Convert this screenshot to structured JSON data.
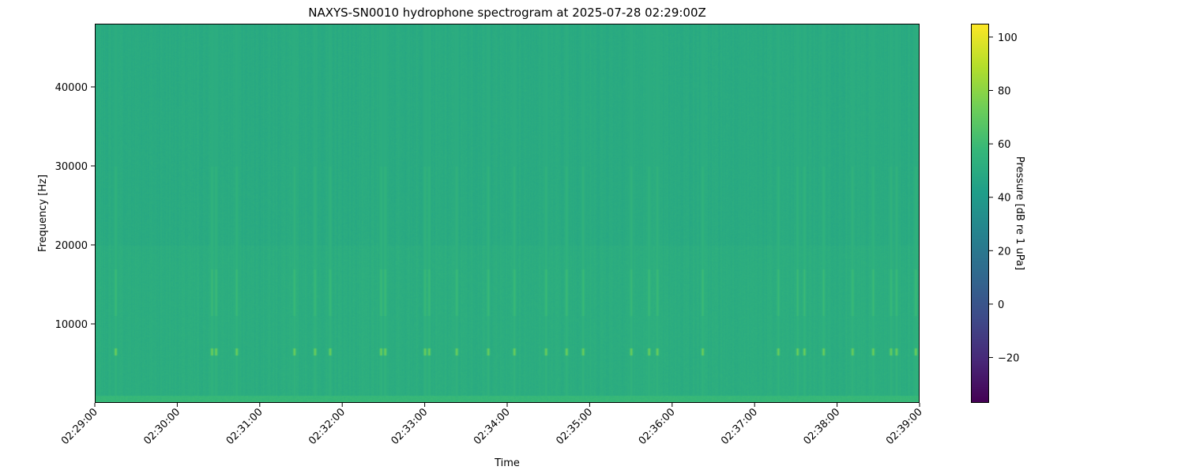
{
  "chart_data": {
    "type": "heatmap",
    "title": "NAXYS-SN0010 hydrophone spectrogram at 2025-07-28 02:29:00Z",
    "xlabel": "Time",
    "ylabel": "Frequency [Hz]",
    "xlim": [
      "02:29:00",
      "02:39:00"
    ],
    "ylim": [
      0,
      48000
    ],
    "x_ticks": [
      "02:29:00",
      "02:30:00",
      "02:31:00",
      "02:32:00",
      "02:33:00",
      "02:34:00",
      "02:35:00",
      "02:36:00",
      "02:37:00",
      "02:38:00",
      "02:39:00"
    ],
    "y_ticks": [
      10000,
      20000,
      30000,
      40000
    ],
    "colormap": "viridis",
    "colorbar": {
      "label": "Pressure [dB re 1 uPa]",
      "range": [
        -37,
        105
      ],
      "ticks": [
        -20,
        0,
        20,
        40,
        60,
        80,
        100
      ]
    },
    "background_level_db": 50,
    "low_freq_band": {
      "range_hz": [
        0,
        1000
      ],
      "level_db": 58
    },
    "transient_events": {
      "freq_band_hz": [
        6000,
        7000
      ],
      "level_db": 75,
      "times": [
        "02:29:15",
        "02:30:25",
        "02:30:28",
        "02:30:43",
        "02:31:25",
        "02:31:40",
        "02:31:51",
        "02:32:28",
        "02:32:31",
        "02:33:00",
        "02:33:03",
        "02:33:23",
        "02:33:46",
        "02:34:05",
        "02:34:28",
        "02:34:43",
        "02:34:55",
        "02:35:30",
        "02:35:43",
        "02:35:49",
        "02:36:22",
        "02:37:17",
        "02:37:31",
        "02:37:36",
        "02:37:50",
        "02:38:11",
        "02:38:26",
        "02:38:39",
        "02:38:43",
        "02:38:57"
      ]
    },
    "grid": false
  }
}
